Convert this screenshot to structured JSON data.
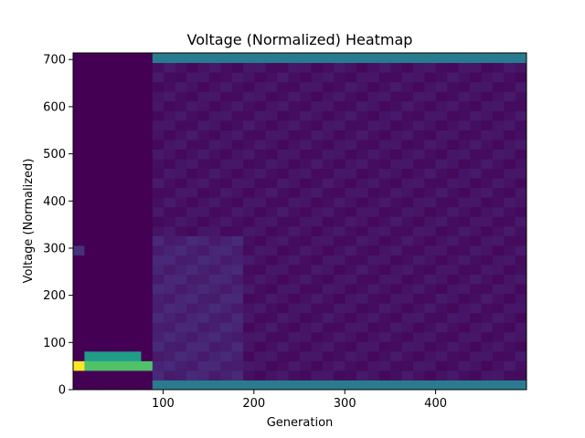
{
  "chart_data": {
    "type": "heatmap",
    "title": "Voltage (Normalized) Heatmap",
    "xlabel": "Generation",
    "ylabel": "Voltage (Normalized)",
    "xlim": [
      1,
      500
    ],
    "ylim": [
      0,
      714
    ],
    "xticks": [
      100,
      200,
      300,
      400
    ],
    "yticks": [
      0,
      100,
      200,
      300,
      400,
      500,
      600,
      700
    ],
    "colormap": "viridis",
    "bins": {
      "x_count": 40,
      "x_width": 12.475,
      "y_count": 35,
      "y_width": 20.4
    },
    "grid": false,
    "legend": "none",
    "features": [
      {
        "x_range": [
          1,
          88
        ],
        "y_range": [
          0,
          714
        ],
        "intensity": 0.0,
        "note": "empty region"
      },
      {
        "x_range": [
          1,
          13
        ],
        "y_range": [
          40,
          61
        ],
        "intensity": 1.0
      },
      {
        "x_range": [
          13,
          88
        ],
        "y_range": [
          40,
          61
        ],
        "intensity": 0.72
      },
      {
        "x_range": [
          13,
          75
        ],
        "y_range": [
          61,
          82
        ],
        "intensity": 0.55
      },
      {
        "x_range": [
          88,
          100
        ],
        "y_range": [
          61,
          102
        ],
        "intensity": 0.35
      },
      {
        "x_range": [
          1,
          13
        ],
        "y_range": [
          285,
          306
        ],
        "intensity": 0.14
      },
      {
        "x_range": [
          88,
          500
        ],
        "y_range": [
          0,
          20
        ],
        "intensity": 0.42
      },
      {
        "x_range": [
          88,
          500
        ],
        "y_range": [
          694,
          714
        ],
        "intensity": 0.42
      },
      {
        "x_range": [
          88,
          500
        ],
        "y_range": [
          20,
          694
        ],
        "intensity": 0.04,
        "note": "low background"
      }
    ]
  }
}
